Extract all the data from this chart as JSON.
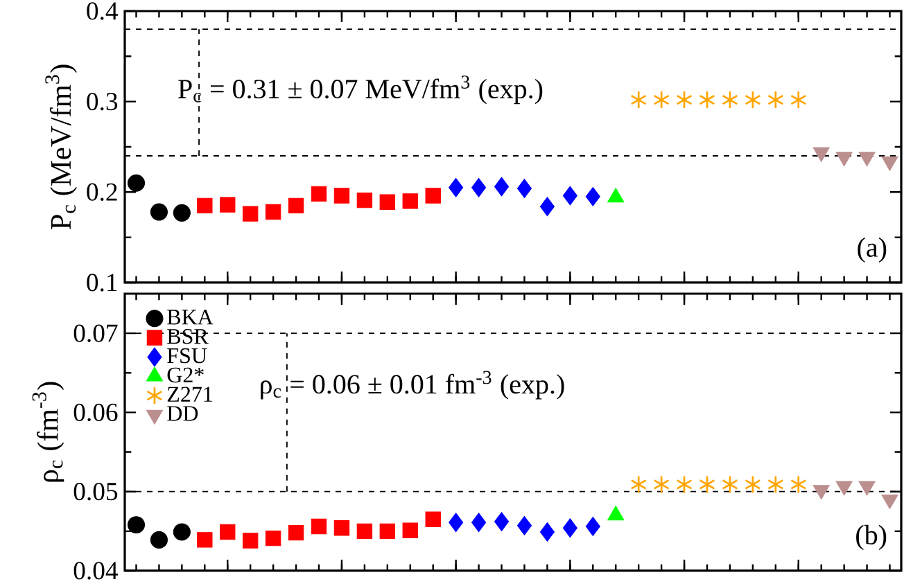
{
  "chart_data": [
    {
      "type": "scatter",
      "ylabel": "P$_{c}$ (MeV/fm$^{3}$)",
      "categories": [
        null,
        null,
        null,
        null,
        null,
        null,
        null,
        null,
        null,
        null,
        null,
        null,
        null,
        null,
        null,
        null,
        null,
        null,
        null,
        null,
        null,
        null,
        null,
        null,
        null,
        null,
        null,
        null,
        null,
        null,
        null,
        null,
        null,
        null
      ],
      "ylim": [
        0.1,
        0.4
      ],
      "yticks": [
        0.1,
        0.2,
        0.3,
        0.4
      ],
      "tick_labels": "y",
      "legend": false,
      "annotations": [
        "P$_{c}$ = 0.31 ± 0.07 MeV/fm$^{3}$ (exp.)",
        "(a)"
      ],
      "ref_lines": [
        {
          "axis": "y",
          "value": 0.24,
          "line_style": "dashed",
          "color": "#000000"
        },
        {
          "axis": "y",
          "value": 0.38,
          "line_style": "dashed",
          "color": "#000000"
        }
      ],
      "series": [
        {
          "color": "#000000",
          "marker": "circle",
          "values": [
            0.21,
            0.178,
            0.177,
            null,
            null,
            null,
            null,
            null,
            null,
            null,
            null,
            null,
            null,
            null,
            null,
            null,
            null,
            null,
            null,
            null,
            null,
            null,
            null,
            null,
            null,
            null,
            null,
            null,
            null,
            null,
            null,
            null,
            null,
            null
          ]
        },
        {
          "color": "#ff0000",
          "marker": "square",
          "values": [
            null,
            null,
            null,
            0.185,
            0.186,
            0.176,
            0.178,
            0.185,
            0.198,
            0.196,
            0.191,
            0.189,
            0.19,
            0.196,
            null,
            null,
            null,
            null,
            null,
            null,
            null,
            null,
            null,
            null,
            null,
            null,
            null,
            null,
            null,
            null,
            null,
            null,
            null,
            null
          ]
        },
        {
          "color": "#0000ff",
          "marker": "diamond",
          "values": [
            null,
            null,
            null,
            null,
            null,
            null,
            null,
            null,
            null,
            null,
            null,
            null,
            null,
            null,
            0.205,
            0.205,
            0.206,
            0.204,
            0.184,
            0.196,
            0.195,
            null,
            null,
            null,
            null,
            null,
            null,
            null,
            null,
            null,
            null,
            null,
            null,
            null
          ]
        },
        {
          "color": "#00ff00",
          "marker": "triangle",
          "values": [
            null,
            null,
            null,
            null,
            null,
            null,
            null,
            null,
            null,
            null,
            null,
            null,
            null,
            null,
            null,
            null,
            null,
            null,
            null,
            null,
            null,
            0.194,
            null,
            null,
            null,
            null,
            null,
            null,
            null,
            null,
            null,
            null,
            null,
            null
          ]
        },
        {
          "color": "#ffa500",
          "marker": "cross",
          "values": [
            null,
            null,
            null,
            null,
            null,
            null,
            null,
            null,
            null,
            null,
            null,
            null,
            null,
            null,
            null,
            null,
            null,
            null,
            null,
            null,
            null,
            null,
            0.302,
            0.302,
            0.302,
            0.302,
            0.302,
            0.302,
            0.302,
            0.302,
            null,
            null,
            null,
            null
          ]
        },
        {
          "color": "#bc8f8f",
          "marker": "triangle-down",
          "values": [
            null,
            null,
            null,
            null,
            null,
            null,
            null,
            null,
            null,
            null,
            null,
            null,
            null,
            null,
            null,
            null,
            null,
            null,
            null,
            null,
            null,
            null,
            null,
            null,
            null,
            null,
            null,
            null,
            null,
            null,
            0.244,
            0.239,
            0.239,
            0.234
          ]
        }
      ]
    },
    {
      "type": "scatter",
      "ylabel": "ρ$_{c}$ (fm$^{-3}$)",
      "categories": [
        null,
        null,
        null,
        null,
        null,
        null,
        null,
        null,
        null,
        null,
        null,
        null,
        null,
        null,
        null,
        null,
        null,
        null,
        null,
        null,
        null,
        null,
        null,
        null,
        null,
        null,
        null,
        null,
        null,
        null,
        null,
        null,
        null,
        null
      ],
      "ylim": [
        0.04,
        0.075
      ],
      "yticks": [
        0.04,
        0.05,
        0.06,
        0.07
      ],
      "tick_labels": "y",
      "legend": "top left",
      "annotations": [
        "ρ$_{c}$ = 0.06 ± 0.01 fm$^{-3}$ (exp.)",
        "(b)"
      ],
      "ref_lines": [
        {
          "axis": "y",
          "value": 0.05,
          "line_style": "dashed",
          "color": "#000000"
        },
        {
          "axis": "y",
          "value": 0.07,
          "line_style": "dashed",
          "color": "#000000"
        }
      ],
      "series": [
        {
          "name": "BKA",
          "color": "#000000",
          "marker": "circle",
          "values": [
            0.0458,
            0.0439,
            0.0449,
            null,
            null,
            null,
            null,
            null,
            null,
            null,
            null,
            null,
            null,
            null,
            null,
            null,
            null,
            null,
            null,
            null,
            null,
            null,
            null,
            null,
            null,
            null,
            null,
            null,
            null,
            null,
            null,
            null,
            null,
            null
          ]
        },
        {
          "name": "BSR",
          "color": "#ff0000",
          "marker": "square",
          "values": [
            null,
            null,
            null,
            0.0439,
            0.0449,
            0.0438,
            0.0441,
            0.0448,
            0.0456,
            0.0454,
            0.045,
            0.045,
            0.0451,
            0.0465,
            null,
            null,
            null,
            null,
            null,
            null,
            null,
            null,
            null,
            null,
            null,
            null,
            null,
            null,
            null,
            null,
            null,
            null,
            null,
            null
          ]
        },
        {
          "name": "FSU",
          "color": "#0000ff",
          "marker": "diamond",
          "values": [
            null,
            null,
            null,
            null,
            null,
            null,
            null,
            null,
            null,
            null,
            null,
            null,
            null,
            null,
            0.0461,
            0.0461,
            0.0462,
            0.0457,
            0.0449,
            0.0454,
            0.0456,
            null,
            null,
            null,
            null,
            null,
            null,
            null,
            null,
            null,
            null,
            null,
            null,
            null
          ]
        },
        {
          "name": "G2*",
          "color": "#00ff00",
          "marker": "triangle",
          "values": [
            null,
            null,
            null,
            null,
            null,
            null,
            null,
            null,
            null,
            null,
            null,
            null,
            null,
            null,
            null,
            null,
            null,
            null,
            null,
            null,
            null,
            0.047,
            null,
            null,
            null,
            null,
            null,
            null,
            null,
            null,
            null,
            null,
            null,
            null
          ]
        },
        {
          "name": "Z271",
          "color": "#ffa500",
          "marker": "cross",
          "values": [
            null,
            null,
            null,
            null,
            null,
            null,
            null,
            null,
            null,
            null,
            null,
            null,
            null,
            null,
            null,
            null,
            null,
            null,
            null,
            null,
            null,
            null,
            0.0509,
            0.0509,
            0.0509,
            0.0509,
            0.0509,
            0.0509,
            0.0509,
            0.0509,
            null,
            null,
            null,
            null
          ]
        },
        {
          "name": "DD",
          "color": "#bc8f8f",
          "marker": "triangle-down",
          "values": [
            null,
            null,
            null,
            null,
            null,
            null,
            null,
            null,
            null,
            null,
            null,
            null,
            null,
            null,
            null,
            null,
            null,
            null,
            null,
            null,
            null,
            null,
            null,
            null,
            null,
            null,
            null,
            null,
            null,
            null,
            0.0502,
            0.0507,
            0.0507,
            0.049
          ]
        }
      ]
    }
  ]
}
